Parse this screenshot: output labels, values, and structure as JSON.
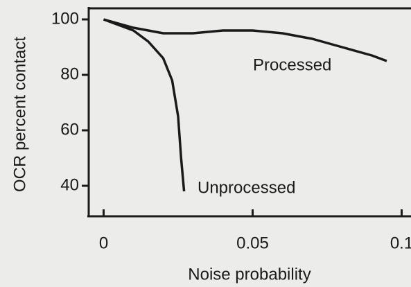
{
  "chart_data": {
    "type": "line",
    "x_label": "Noise probability",
    "y_label": "OCR percent contact",
    "xlim": [
      -0.005,
      0.103
    ],
    "ylim": [
      29,
      105
    ],
    "xticks": [
      0,
      0.05,
      0.1
    ],
    "yticks": [
      100,
      80,
      60,
      40
    ],
    "color": "#1a1a1a",
    "annotations": [
      "Processed",
      "Unprocessed"
    ],
    "series": [
      {
        "x": [
          0,
          0.01,
          0.02,
          0.03,
          0.04,
          0.05,
          0.06,
          0.07,
          0.08,
          0.09,
          0.095
        ],
        "values": [
          100,
          97,
          95,
          95,
          96,
          96,
          95,
          93,
          90,
          87,
          85
        ]
      },
      {
        "x": [
          0,
          0.005,
          0.01,
          0.015,
          0.02,
          0.023,
          0.025,
          0.026,
          0.027
        ],
        "values": [
          100,
          98,
          96,
          92,
          86,
          78,
          65,
          50,
          38
        ]
      }
    ]
  }
}
